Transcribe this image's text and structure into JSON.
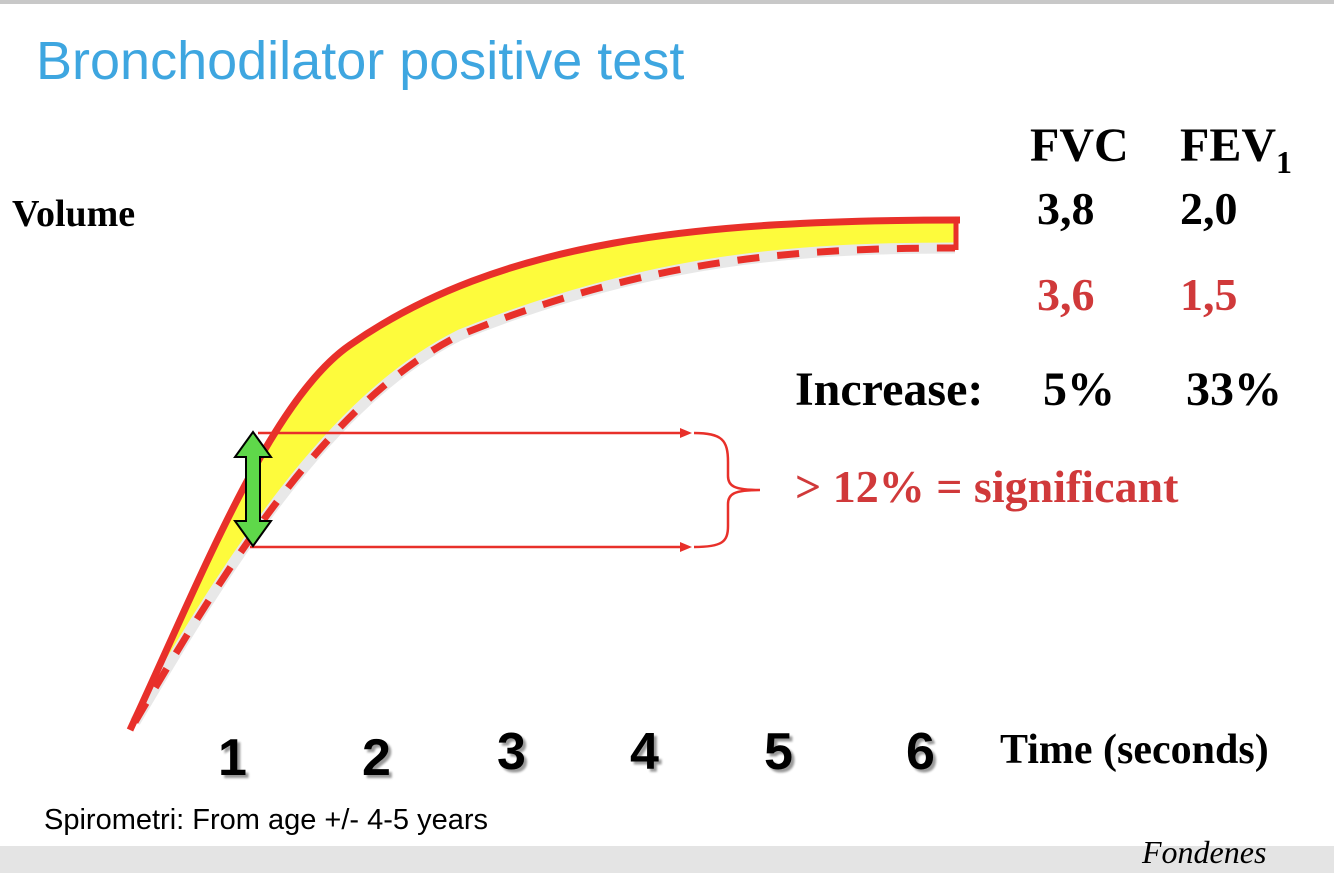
{
  "title": "Bronchodilator positive test",
  "axis": {
    "y_label": "Volume",
    "x_label": "Time (seconds)",
    "x_ticks": [
      "1",
      "2",
      "3",
      "4",
      "5",
      "6"
    ]
  },
  "table": {
    "headers": {
      "fvc": "FVC",
      "fev_main": "FEV",
      "fev_sub": "1"
    },
    "after": {
      "fvc": "3,8",
      "fev1": "2,0"
    },
    "before": {
      "fvc": "3,6",
      "fev1": "1,5"
    },
    "increase": {
      "label": "Increase:",
      "fvc": "5%",
      "fev1": "33%"
    }
  },
  "annotation": "> 12% = significant",
  "footnote": "Spirometri: From age +/- 4-5 years",
  "footer_logo_text": "Fondenes",
  "colors": {
    "title": "#3ea6e0",
    "curve": "#e8302a",
    "fill": "#fdfb3c",
    "arrow": "#5fd84a",
    "red_text": "#d0393a"
  }
}
